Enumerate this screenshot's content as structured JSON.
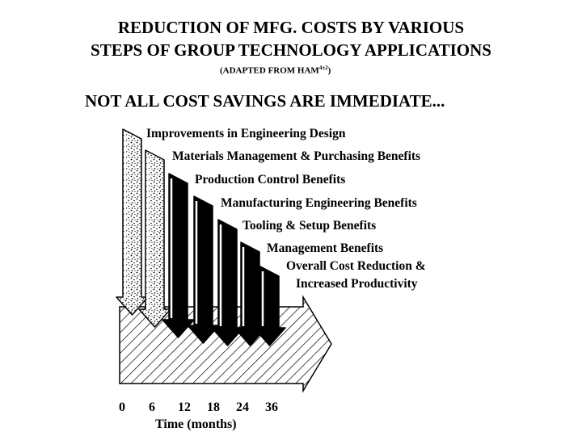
{
  "title_line1": "REDUCTION OF MFG. COSTS BY VARIOUS",
  "title_line2": "STEPS OF GROUP TECHNOLOGY APPLICATIONS",
  "subtitle_prefix": "(ADAPTED FROM HAM",
  "subtitle_ref": "4±2",
  "subtitle_suffix": ")",
  "tagline": "NOT ALL COST SAVINGS ARE IMMEDIATE...",
  "steps": [
    {
      "label": "Improvements in Engineering Design",
      "fill": "stipple"
    },
    {
      "label": "Materials Management & Purchasing Benefits",
      "fill": "stipple"
    },
    {
      "label": "Production Control Benefits",
      "fill": "solid"
    },
    {
      "label": "Manufacturing Engineering Benefits",
      "fill": "solid"
    },
    {
      "label": "Tooling & Setup Benefits",
      "fill": "solid"
    },
    {
      "label": "Management Benefits",
      "fill": "solid"
    },
    {
      "label_line1": "Overall Cost Reduction &",
      "label_line2": "Increased Productivity",
      "fill": "solid"
    }
  ],
  "time_ticks": [
    "0",
    "6",
    "12",
    "18",
    "24",
    "36"
  ],
  "xlabel": "Time (months)"
}
